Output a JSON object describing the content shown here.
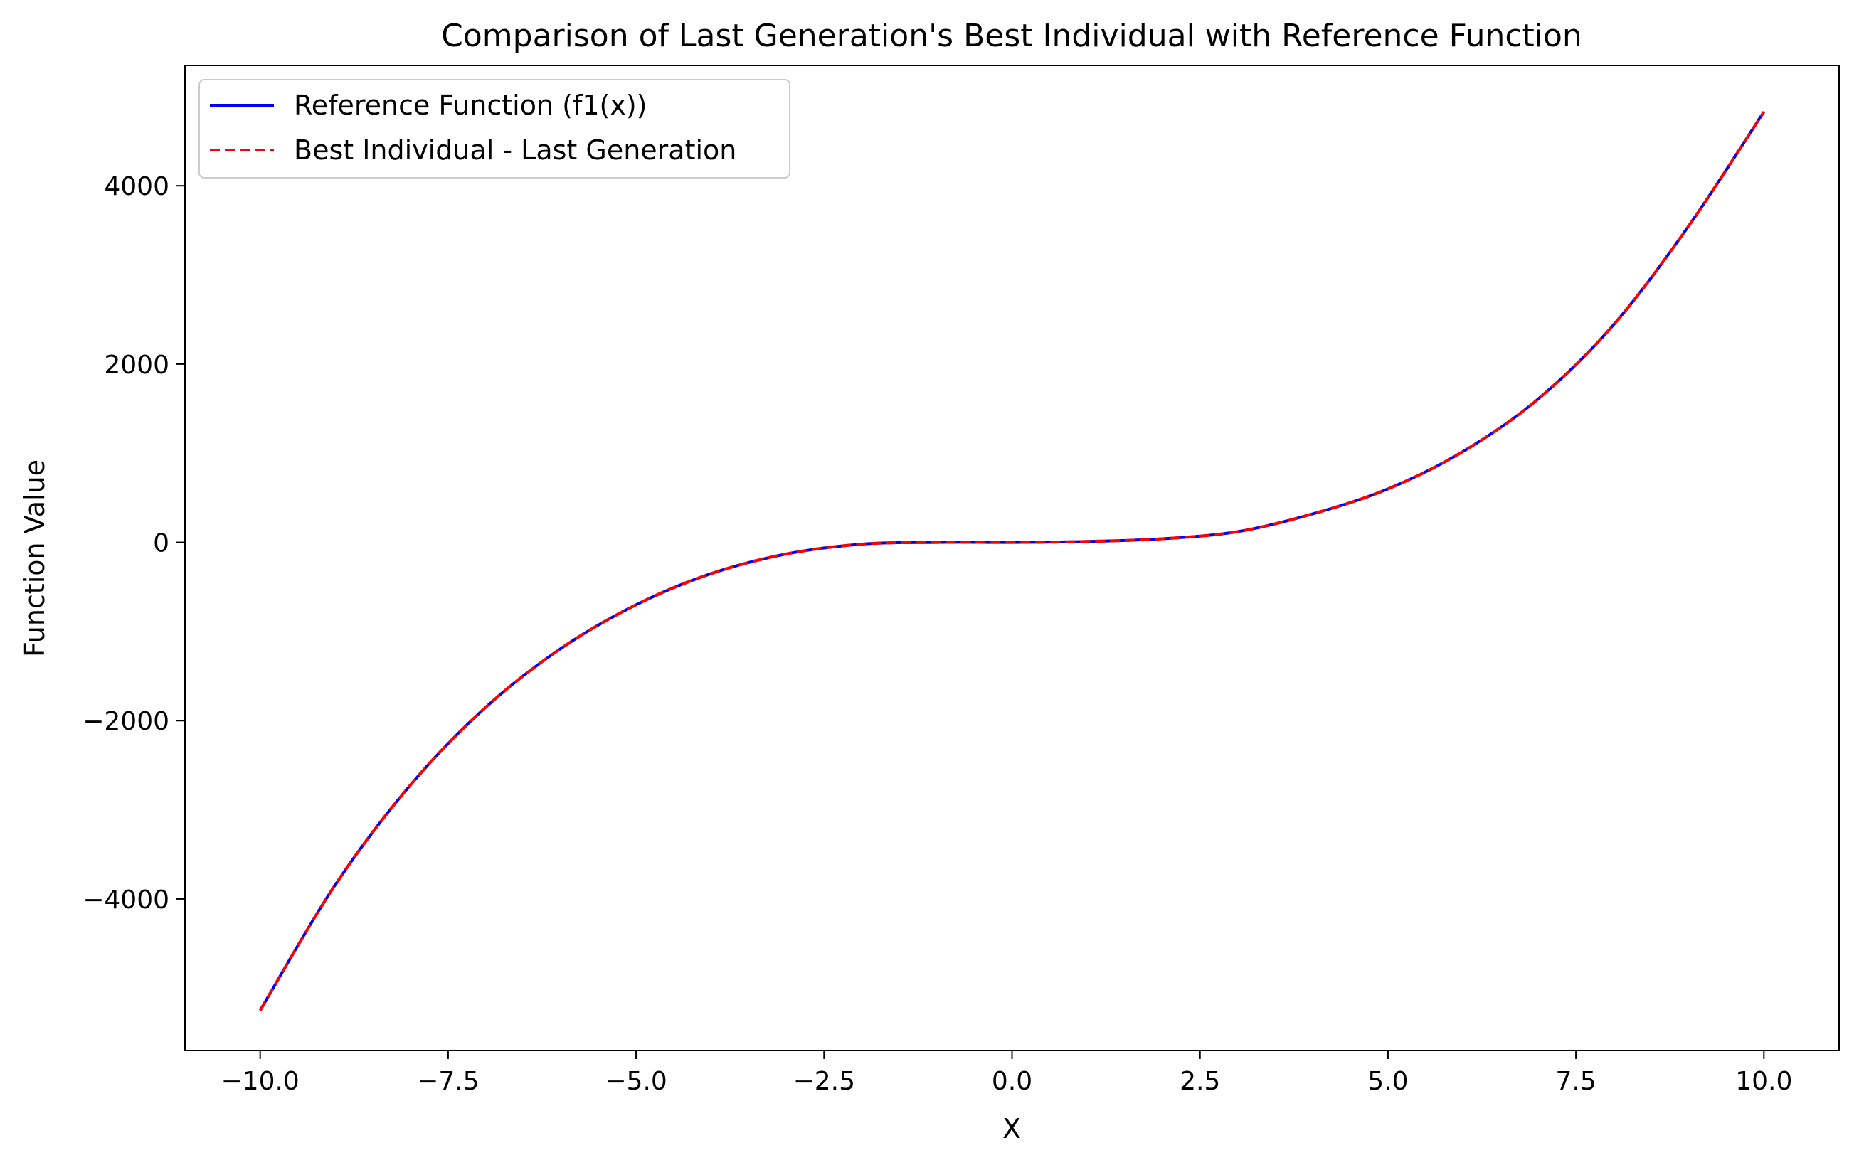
{
  "chart_data": {
    "type": "line",
    "title": "Comparison of Last Generation's Best Individual with Reference Function",
    "xlabel": "X",
    "ylabel": "Function Value",
    "xlim": [
      -11.0,
      11.0
    ],
    "ylim": [
      -5700,
      5350
    ],
    "xticks": [
      -10.0,
      -7.5,
      -5.0,
      -2.5,
      0.0,
      2.5,
      5.0,
      7.5,
      10.0
    ],
    "xtick_labels": [
      "−10.0",
      "−7.5",
      "−5.0",
      "−2.5",
      "0.0",
      "2.5",
      "5.0",
      "7.5",
      "10.0"
    ],
    "yticks": [
      -4000,
      -2000,
      0,
      2000,
      4000
    ],
    "ytick_labels": [
      "−4000",
      "−2000",
      "0",
      "2000",
      "4000"
    ],
    "grid": false,
    "legend_position": "upper-left",
    "x": [
      -10,
      -9,
      -8,
      -7,
      -6,
      -5,
      -4,
      -3,
      -2,
      -1,
      0,
      1,
      2,
      3,
      4,
      5,
      6,
      7,
      8,
      9,
      10
    ],
    "series": [
      {
        "name": "Reference Function (f1(x))",
        "color": "#0000ff",
        "style": "solid",
        "values": [
          -5250,
          -3840,
          -2720,
          -1850,
          -1190,
          -700,
          -350,
          -130,
          -20,
          0,
          0,
          10,
          40,
          120,
          320,
          600,
          1020,
          1610,
          2440,
          3550,
          4830
        ]
      },
      {
        "name": "Best Individual - Last Generation",
        "color": "#ff0000",
        "style": "dashed",
        "values": [
          -5250,
          -3840,
          -2720,
          -1850,
          -1190,
          -700,
          -350,
          -130,
          -20,
          0,
          0,
          10,
          40,
          120,
          320,
          600,
          1020,
          1610,
          2440,
          3550,
          4830
        ]
      }
    ]
  }
}
